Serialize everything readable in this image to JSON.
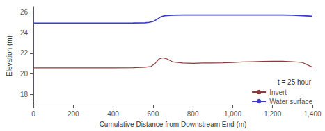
{
  "chart_data": {
    "type": "line",
    "xlabel": "Cumulative Distance from Downstream End (m)",
    "ylabel": "Elevation (m)",
    "xlim": [
      0,
      1400
    ],
    "ylim": [
      17,
      26.5
    ],
    "xticks": [
      0,
      200,
      400,
      600,
      800,
      1000,
      1200,
      1400
    ],
    "yticks": [
      18,
      20,
      22,
      24,
      26
    ],
    "grid": false,
    "legend": "lower right",
    "legend_title": "t = 25 hour",
    "series": [
      {
        "name": "Invert",
        "color": "#8B3A3A",
        "x": [
          0,
          50,
          100,
          200,
          300,
          400,
          500,
          560,
          590,
          610,
          630,
          650,
          670,
          700,
          750,
          800,
          850,
          900,
          950,
          1000,
          1050,
          1100,
          1150,
          1200,
          1250,
          1300,
          1350,
          1400
        ],
        "values": [
          20.58,
          20.58,
          20.58,
          20.58,
          20.58,
          20.58,
          20.6,
          20.65,
          20.72,
          21.0,
          21.45,
          21.55,
          21.45,
          21.15,
          21.05,
          21.02,
          21.05,
          21.05,
          21.07,
          21.1,
          21.15,
          21.18,
          21.2,
          21.22,
          21.22,
          21.18,
          21.1,
          20.65
        ]
      },
      {
        "name": "Water surface",
        "color": "#3A3ACD",
        "x": [
          0,
          50,
          100,
          200,
          300,
          400,
          500,
          560,
          580,
          600,
          620,
          640,
          660,
          700,
          750,
          800,
          850,
          900,
          950,
          1000,
          1050,
          1100,
          1150,
          1200,
          1250,
          1300,
          1350,
          1400
        ],
        "values": [
          24.93,
          24.93,
          24.93,
          24.93,
          24.93,
          24.93,
          24.94,
          24.96,
          25.0,
          25.08,
          25.3,
          25.55,
          25.65,
          25.7,
          25.72,
          25.72,
          25.72,
          25.72,
          25.72,
          25.72,
          25.72,
          25.72,
          25.72,
          25.72,
          25.72,
          25.7,
          25.65,
          25.6
        ]
      }
    ]
  }
}
